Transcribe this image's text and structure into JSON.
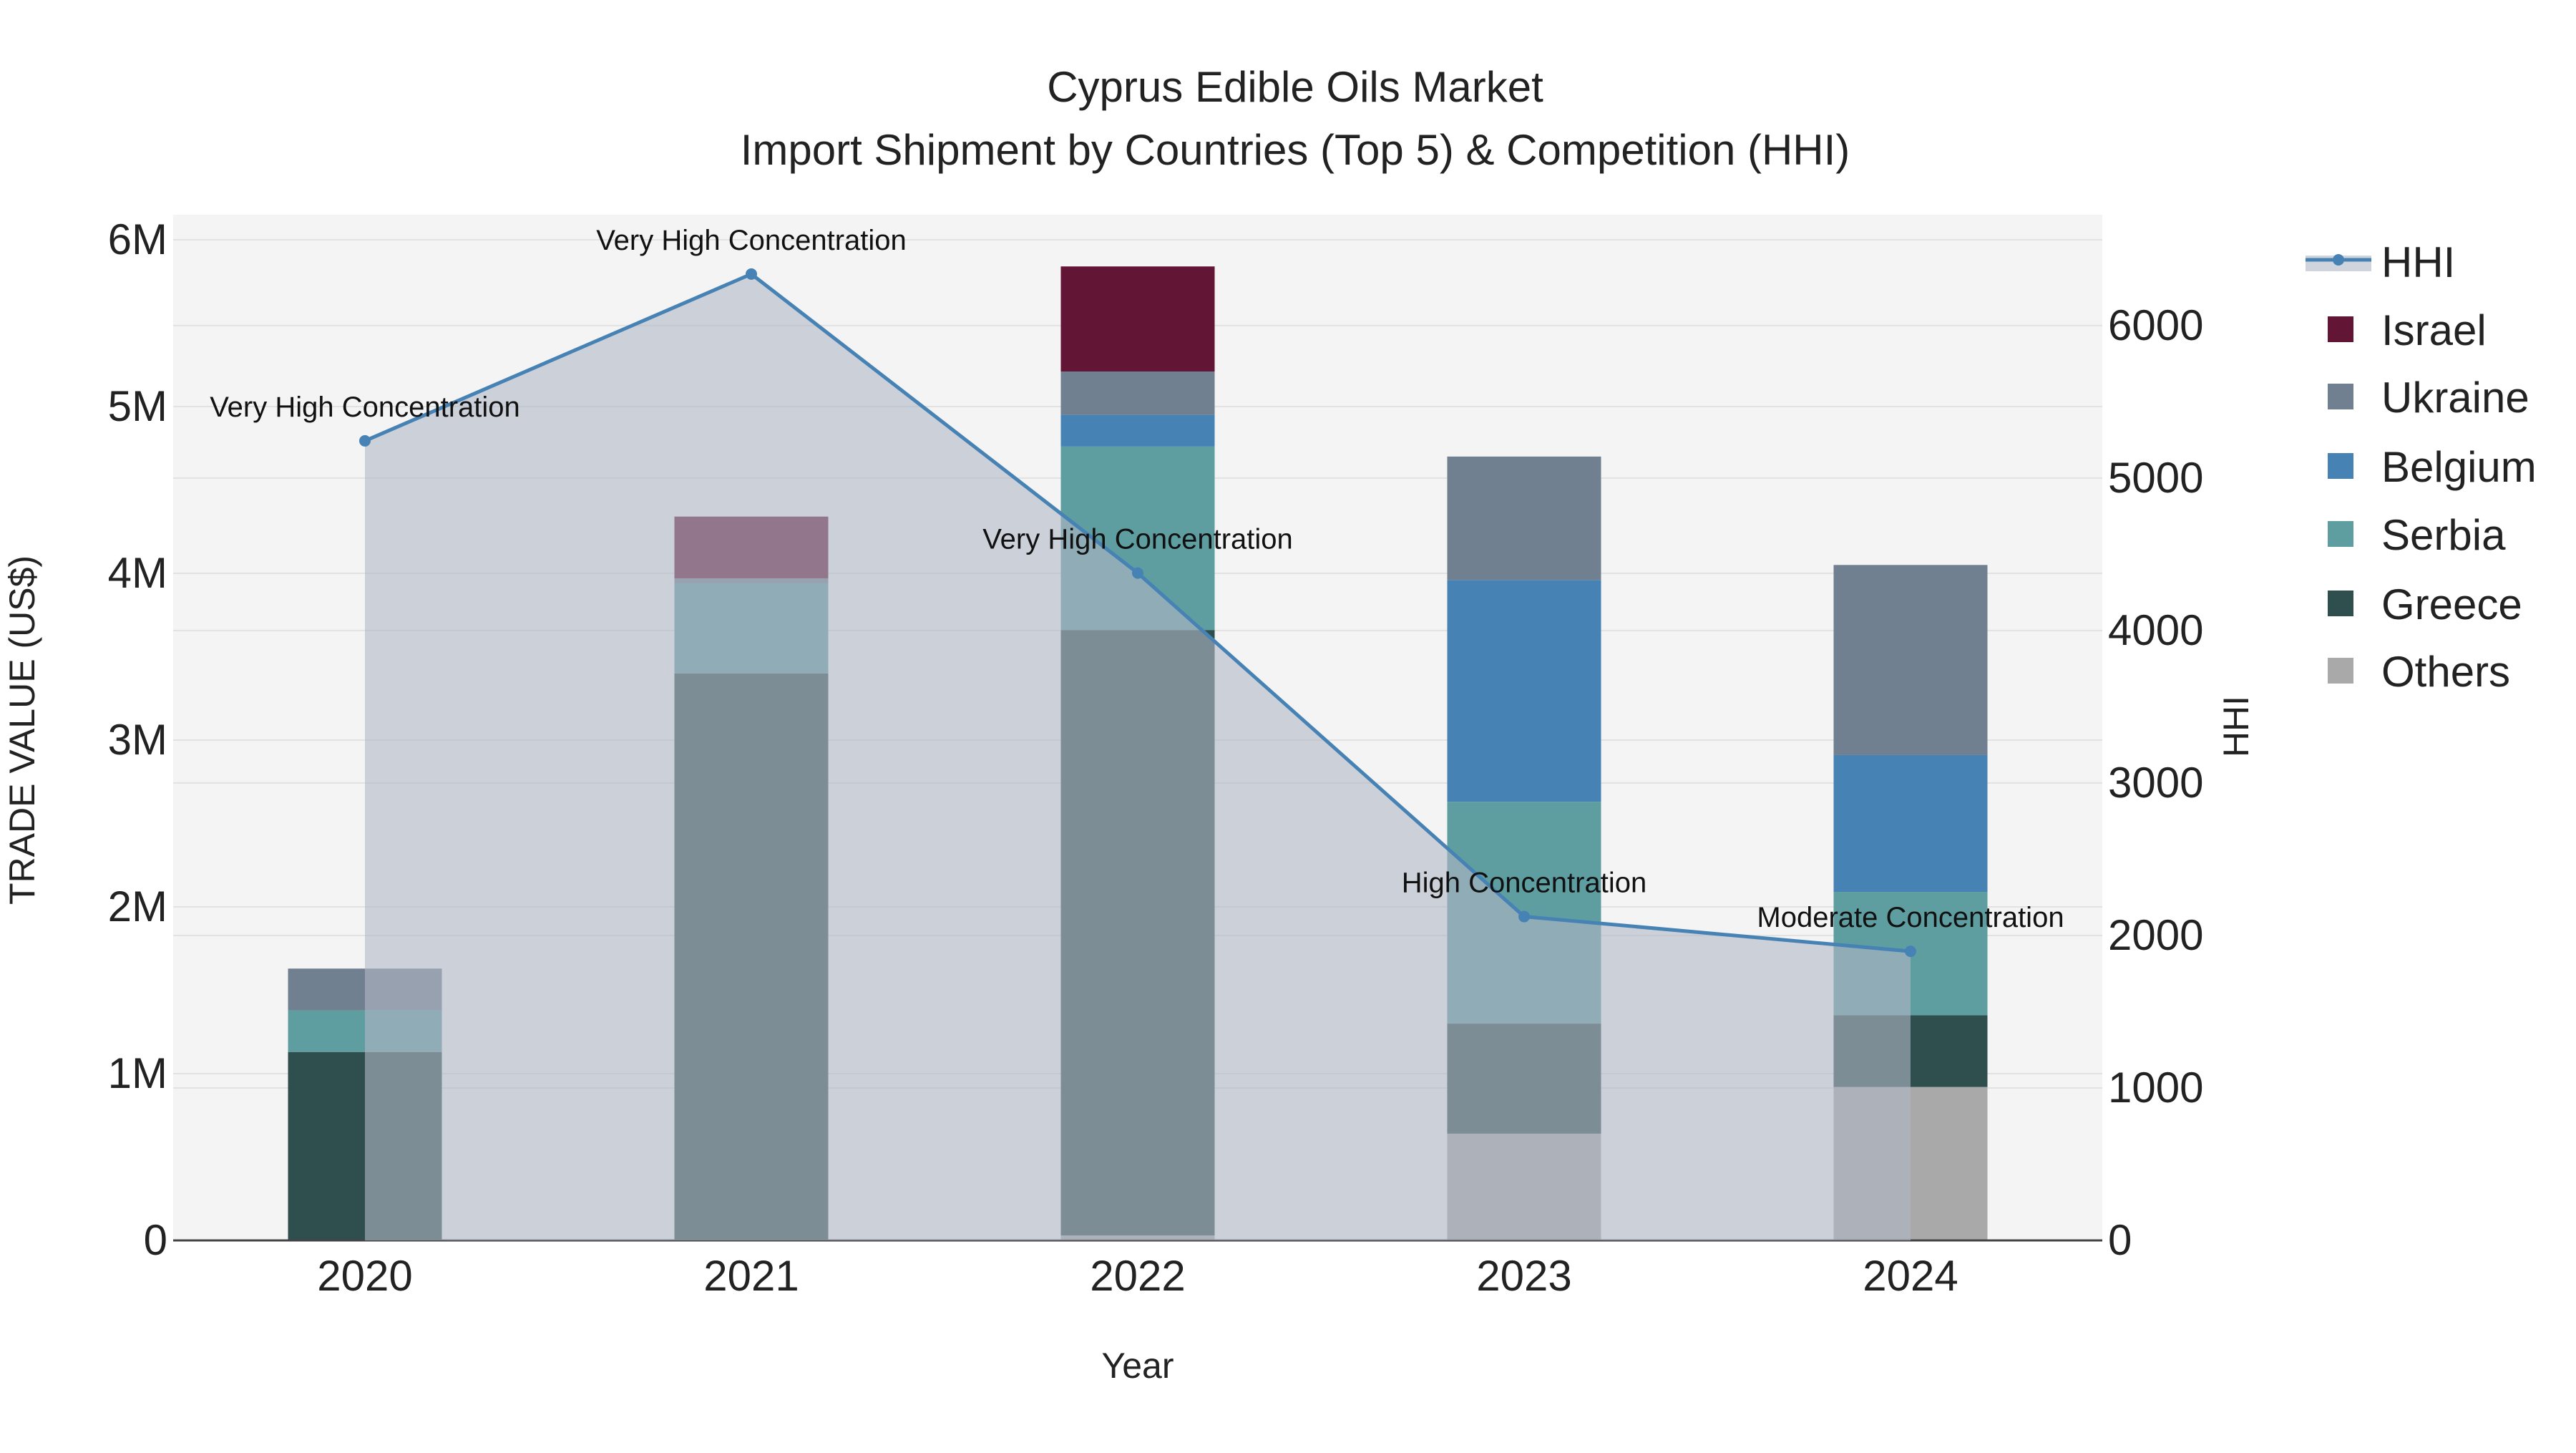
{
  "chart_data": {
    "type": "bar",
    "title": "Cyprus Edible Oils Market",
    "subtitle": "Import Shipment by Countries (Top 5) & Competition (HHI)",
    "xlabel": "Year",
    "ylabel": "TRADE VALUE (US$)",
    "y2label": "HHI",
    "categories": [
      "2020",
      "2021",
      "2022",
      "2023",
      "2024"
    ],
    "ylim": [
      0,
      6150000
    ],
    "y2lim": [
      0,
      6727
    ],
    "yticks": [
      {
        "v": 0,
        "label": "0"
      },
      {
        "v": 1000000,
        "label": "1M"
      },
      {
        "v": 2000000,
        "label": "2M"
      },
      {
        "v": 3000000,
        "label": "3M"
      },
      {
        "v": 4000000,
        "label": "4M"
      },
      {
        "v": 5000000,
        "label": "5M"
      },
      {
        "v": 6000000,
        "label": "6M"
      }
    ],
    "y2ticks": [
      {
        "v": 0,
        "label": "0"
      },
      {
        "v": 1000,
        "label": "1000"
      },
      {
        "v": 2000,
        "label": "2000"
      },
      {
        "v": 3000,
        "label": "3000"
      },
      {
        "v": 4000,
        "label": "4000"
      },
      {
        "v": 5000,
        "label": "5000"
      },
      {
        "v": 6000,
        "label": "6000"
      }
    ],
    "series": [
      {
        "name": "Others",
        "color": "#a9a9a9",
        "values": [
          0,
          0,
          30000,
          640000,
          920000
        ]
      },
      {
        "name": "Greece",
        "color": "#2f4f4f",
        "values": [
          1130000,
          3400000,
          3630000,
          660000,
          430000
        ]
      },
      {
        "name": "Serbia",
        "color": "#5f9ea0",
        "values": [
          250000,
          540000,
          1100000,
          1330000,
          740000
        ]
      },
      {
        "name": "Belgium",
        "color": "#4682b4",
        "values": [
          0,
          0,
          190000,
          1330000,
          820000
        ]
      },
      {
        "name": "Ukraine",
        "color": "#708090",
        "values": [
          250000,
          30000,
          260000,
          740000,
          1140000
        ]
      },
      {
        "name": "Israel",
        "color": "#631535",
        "values": [
          0,
          370000,
          630000,
          0,
          0
        ]
      }
    ],
    "hhi": {
      "name": "HHI",
      "color": "#4682b4",
      "values": [
        5244,
        6338,
        4377,
        2124,
        1896
      ],
      "annotations": [
        "Very High Concentration",
        "Very High Concentration",
        "Very High Concentration",
        "High Concentration",
        "Moderate Concentration"
      ]
    },
    "legend": [
      "HHI",
      "Israel",
      "Ukraine",
      "Belgium",
      "Serbia",
      "Greece",
      "Others"
    ],
    "legend_placement": "right",
    "grid": true
  }
}
